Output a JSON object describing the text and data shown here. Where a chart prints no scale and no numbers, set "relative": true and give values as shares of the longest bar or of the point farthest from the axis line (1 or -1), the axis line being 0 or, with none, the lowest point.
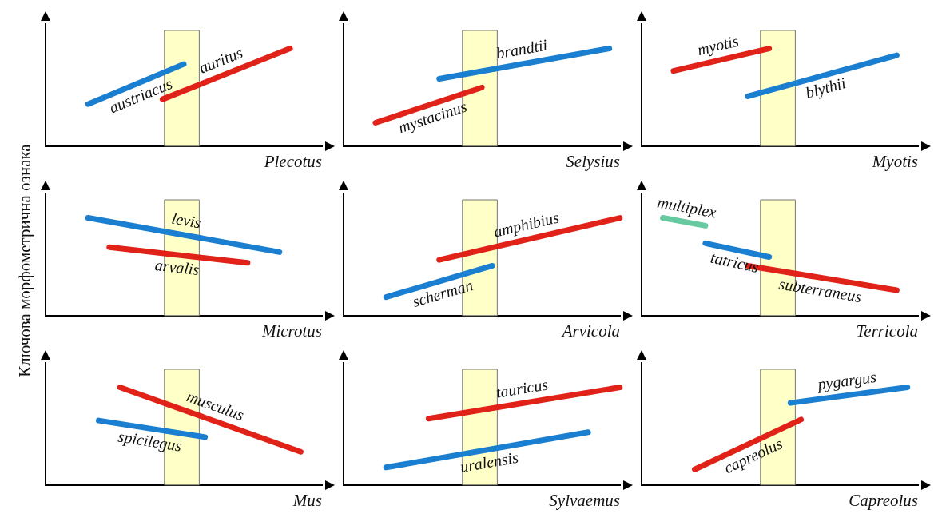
{
  "chart_data": [
    {
      "type": "line",
      "relative": true,
      "xlabel": "Plecotus",
      "tick_labels": false,
      "grid": false,
      "legend": false,
      "categories": [
        null,
        null,
        null,
        null,
        null,
        null,
        null,
        null,
        null,
        null,
        null,
        null,
        null,
        null,
        null,
        null,
        null,
        null,
        null,
        null,
        null,
        null,
        null,
        null,
        null,
        null,
        null
      ],
      "series": [
        {
          "name": "austriacus",
          "color": "#1a7fd0",
          "values": [
            null,
            null,
            null,
            null,
            0.43,
            null,
            null,
            null,
            null,
            null,
            null,
            null,
            null,
            0.84,
            null,
            null,
            null,
            null,
            null,
            null,
            null,
            null,
            null,
            null,
            null,
            null,
            null
          ]
        },
        {
          "name": "auritus",
          "color": "#e02218",
          "values": [
            null,
            null,
            null,
            null,
            null,
            null,
            null,
            null,
            null,
            null,
            null,
            0.48,
            null,
            null,
            null,
            null,
            null,
            null,
            null,
            null,
            null,
            null,
            null,
            1,
            null,
            null,
            null
          ]
        }
      ]
    },
    {
      "type": "line",
      "relative": true,
      "xlabel": "Selysius",
      "tick_labels": false,
      "grid": false,
      "legend": false,
      "categories": [
        null,
        null,
        null,
        null,
        null,
        null,
        null,
        null,
        null,
        null,
        null,
        null,
        null,
        null,
        null,
        null,
        null,
        null,
        null,
        null,
        null,
        null,
        null,
        null,
        null,
        null,
        null
      ],
      "series": [
        {
          "name": "brandtii",
          "color": "#1a7fd0",
          "values": [
            null,
            null,
            null,
            null,
            null,
            null,
            null,
            null,
            null,
            0.69,
            null,
            null,
            null,
            null,
            null,
            null,
            null,
            null,
            null,
            null,
            null,
            null,
            null,
            null,
            null,
            1,
            null
          ]
        },
        {
          "name": "mystacinus",
          "color": "#e02218",
          "values": [
            null,
            null,
            null,
            0.24,
            null,
            null,
            null,
            null,
            null,
            null,
            null,
            null,
            null,
            0.6,
            null,
            null,
            null,
            null,
            null,
            null,
            null,
            null,
            null,
            null,
            null,
            null,
            null
          ]
        }
      ]
    },
    {
      "type": "line",
      "relative": true,
      "xlabel": "Myotis",
      "tick_labels": false,
      "grid": false,
      "legend": false,
      "categories": [
        null,
        null,
        null,
        null,
        null,
        null,
        null,
        null,
        null,
        null,
        null,
        null,
        null,
        null,
        null,
        null,
        null,
        null,
        null,
        null,
        null,
        null,
        null,
        null,
        null,
        null,
        null
      ],
      "series": [
        {
          "name": "myotis",
          "color": "#e02218",
          "values": [
            null,
            null,
            null,
            0.77,
            null,
            null,
            null,
            null,
            null,
            null,
            null,
            null,
            1,
            null,
            null,
            null,
            null,
            null,
            null,
            null,
            null,
            null,
            null,
            null,
            null,
            null,
            null
          ]
        },
        {
          "name": "blythii",
          "color": "#1a7fd0",
          "values": [
            null,
            null,
            null,
            null,
            null,
            null,
            null,
            null,
            null,
            null,
            0.51,
            null,
            null,
            null,
            null,
            null,
            null,
            null,
            null,
            null,
            null,
            null,
            null,
            null,
            0.93,
            null,
            null
          ]
        }
      ]
    },
    {
      "type": "line",
      "relative": true,
      "xlabel": "Microtus",
      "ylabel": "Ключова морфометрична ознака",
      "tick_labels": false,
      "grid": false,
      "legend": false,
      "categories": [
        null,
        null,
        null,
        null,
        null,
        null,
        null,
        null,
        null,
        null,
        null,
        null,
        null,
        null,
        null,
        null,
        null,
        null,
        null,
        null,
        null,
        null,
        null,
        null,
        null,
        null,
        null
      ],
      "series": [
        {
          "name": "levis",
          "color": "#1a7fd0",
          "values": [
            null,
            null,
            null,
            null,
            1,
            null,
            null,
            null,
            null,
            null,
            null,
            null,
            null,
            null,
            null,
            null,
            null,
            null,
            null,
            null,
            null,
            null,
            0.65,
            null,
            null,
            null,
            null
          ]
        },
        {
          "name": "arvalis",
          "color": "#e02218",
          "values": [
            null,
            null,
            null,
            null,
            null,
            null,
            0.7,
            null,
            null,
            null,
            null,
            null,
            null,
            null,
            null,
            null,
            null,
            null,
            null,
            0.54,
            null,
            null,
            null,
            null,
            null,
            null,
            null
          ]
        }
      ]
    },
    {
      "type": "line",
      "relative": true,
      "xlabel": "Arvicola",
      "tick_labels": false,
      "grid": false,
      "legend": false,
      "categories": [
        null,
        null,
        null,
        null,
        null,
        null,
        null,
        null,
        null,
        null,
        null,
        null,
        null,
        null,
        null,
        null,
        null,
        null,
        null,
        null,
        null,
        null,
        null,
        null,
        null,
        null,
        null
      ],
      "series": [
        {
          "name": "amphibius",
          "color": "#e02218",
          "values": [
            null,
            null,
            null,
            null,
            null,
            null,
            null,
            null,
            null,
            0.57,
            null,
            null,
            null,
            null,
            null,
            null,
            null,
            null,
            null,
            null,
            null,
            null,
            null,
            null,
            null,
            null,
            1
          ]
        },
        {
          "name": "scherman",
          "color": "#1a7fd0",
          "values": [
            null,
            null,
            null,
            null,
            0.19,
            null,
            null,
            null,
            null,
            null,
            null,
            null,
            null,
            null,
            0.51,
            null,
            null,
            null,
            null,
            null,
            null,
            null,
            null,
            null,
            null,
            null,
            null
          ]
        }
      ]
    },
    {
      "type": "line",
      "relative": true,
      "xlabel": "Terricola",
      "tick_labels": false,
      "grid": false,
      "legend": false,
      "categories": [
        null,
        null,
        null,
        null,
        null,
        null,
        null,
        null,
        null,
        null,
        null,
        null,
        null,
        null,
        null,
        null,
        null,
        null,
        null,
        null,
        null,
        null,
        null,
        null,
        null,
        null,
        null
      ],
      "series": [
        {
          "name": "multiplex",
          "color": "#66c9a0",
          "values": [
            null,
            null,
            1,
            null,
            null,
            null,
            0.92,
            null,
            null,
            null,
            null,
            null,
            null,
            null,
            null,
            null,
            null,
            null,
            null,
            null,
            null,
            null,
            null,
            null,
            null,
            null,
            null
          ]
        },
        {
          "name": "tatricus",
          "color": "#1a7fd0",
          "values": [
            null,
            null,
            null,
            null,
            null,
            null,
            0.74,
            null,
            null,
            null,
            null,
            null,
            0.6,
            null,
            null,
            null,
            null,
            null,
            null,
            null,
            null,
            null,
            null,
            null,
            null,
            null,
            null
          ]
        },
        {
          "name": "subterraneus",
          "color": "#e02218",
          "values": [
            null,
            null,
            null,
            null,
            null,
            null,
            null,
            null,
            null,
            null,
            0.51,
            null,
            null,
            null,
            null,
            null,
            null,
            null,
            null,
            null,
            null,
            null,
            null,
            null,
            0.26,
            null,
            null
          ]
        }
      ]
    },
    {
      "type": "line",
      "relative": true,
      "xlabel": "Mus",
      "tick_labels": false,
      "grid": false,
      "legend": false,
      "categories": [
        null,
        null,
        null,
        null,
        null,
        null,
        null,
        null,
        null,
        null,
        null,
        null,
        null,
        null,
        null,
        null,
        null,
        null,
        null,
        null,
        null,
        null,
        null,
        null,
        null,
        null,
        null
      ],
      "series": [
        {
          "name": "musculus",
          "color": "#e02218",
          "values": [
            null,
            null,
            null,
            null,
            null,
            null,
            null,
            1,
            null,
            null,
            null,
            null,
            null,
            null,
            null,
            null,
            null,
            null,
            null,
            null,
            null,
            null,
            null,
            null,
            0.34,
            null,
            null
          ]
        },
        {
          "name": "spicilegus",
          "color": "#1a7fd0",
          "values": [
            null,
            null,
            null,
            null,
            null,
            0.66,
            null,
            null,
            null,
            null,
            null,
            null,
            null,
            null,
            null,
            0.49,
            null,
            null,
            null,
            null,
            null,
            null,
            null,
            null,
            null,
            null,
            null
          ]
        }
      ]
    },
    {
      "type": "line",
      "relative": true,
      "xlabel": "Sylvaemus",
      "tick_labels": false,
      "grid": false,
      "legend": false,
      "categories": [
        null,
        null,
        null,
        null,
        null,
        null,
        null,
        null,
        null,
        null,
        null,
        null,
        null,
        null,
        null,
        null,
        null,
        null,
        null,
        null,
        null,
        null,
        null,
        null,
        null,
        null,
        null
      ],
      "series": [
        {
          "name": "tauricus",
          "color": "#e02218",
          "values": [
            null,
            null,
            null,
            null,
            null,
            null,
            null,
            null,
            0.68,
            null,
            null,
            null,
            null,
            null,
            null,
            null,
            null,
            null,
            null,
            null,
            null,
            null,
            null,
            null,
            null,
            null,
            1
          ]
        },
        {
          "name": "uralensis",
          "color": "#1a7fd0",
          "values": [
            null,
            null,
            null,
            null,
            0.18,
            null,
            null,
            null,
            null,
            null,
            null,
            null,
            null,
            null,
            null,
            null,
            null,
            null,
            null,
            null,
            null,
            null,
            null,
            0.54,
            null,
            null,
            null
          ]
        }
      ]
    },
    {
      "type": "line",
      "relative": true,
      "xlabel": "Capreolus",
      "tick_labels": false,
      "grid": false,
      "legend": false,
      "categories": [
        null,
        null,
        null,
        null,
        null,
        null,
        null,
        null,
        null,
        null,
        null,
        null,
        null,
        null,
        null,
        null,
        null,
        null,
        null,
        null,
        null,
        null,
        null,
        null,
        null,
        null,
        null
      ],
      "series": [
        {
          "name": "capreolus",
          "color": "#e02218",
          "values": [
            null,
            null,
            null,
            null,
            null,
            0.16,
            null,
            null,
            null,
            null,
            null,
            null,
            null,
            null,
            null,
            0.67,
            null,
            null,
            null,
            null,
            null,
            null,
            null,
            null,
            null,
            null,
            null
          ]
        },
        {
          "name": "pygargus",
          "color": "#1a7fd0",
          "values": [
            null,
            null,
            null,
            null,
            null,
            null,
            null,
            null,
            null,
            null,
            null,
            null,
            null,
            null,
            0.84,
            null,
            null,
            null,
            null,
            null,
            null,
            null,
            null,
            null,
            null,
            1,
            null
          ]
        }
      ]
    }
  ]
}
